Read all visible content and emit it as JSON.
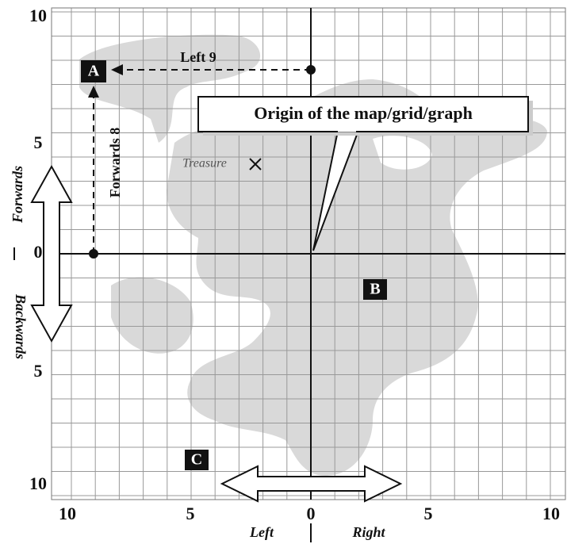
{
  "y_axis": {
    "labels": [
      "10",
      "5",
      "0",
      "5",
      "10"
    ],
    "forwards": "Forwards",
    "backwards": "Backwards"
  },
  "x_axis": {
    "labels": [
      "10",
      "5",
      "0",
      "5",
      "10"
    ],
    "left": "Left",
    "right": "Right"
  },
  "points": {
    "a": "A",
    "b": "B",
    "c": "C"
  },
  "annotations": {
    "left_move": "Left 9",
    "forwards_move": "Forwards 8",
    "treasure": "Treasure",
    "origin_callout": "Origin of the map/grid/graph"
  }
}
